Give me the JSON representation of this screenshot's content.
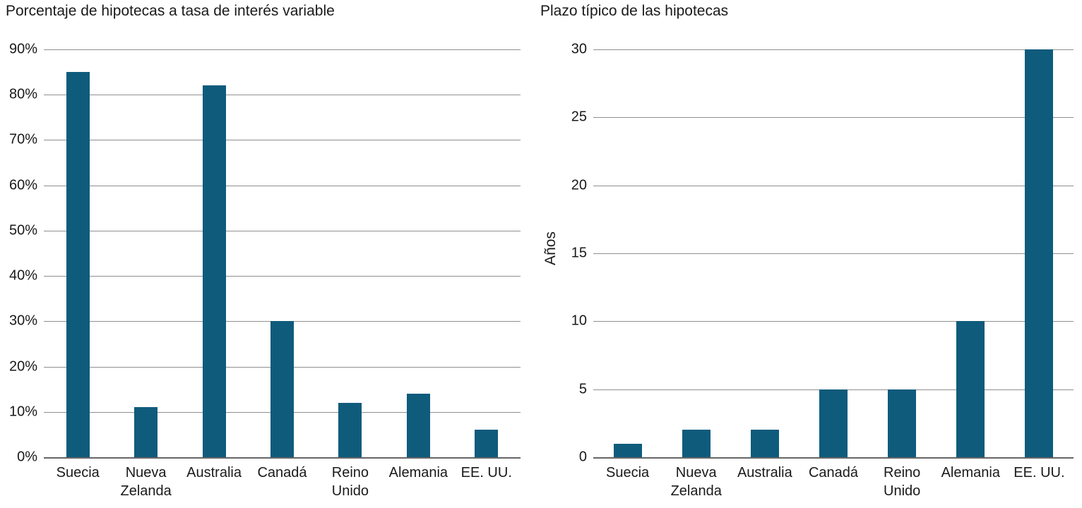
{
  "chart_data": [
    {
      "type": "bar",
      "title": "Porcentaje de hipotecas a tasa de interés variable",
      "categories": [
        "Suecia",
        "Nueva Zelanda",
        "Australia",
        "Canadá",
        "Reino Unido",
        "Alemania",
        "EE. UU."
      ],
      "values": [
        85,
        11,
        82,
        30,
        12,
        14,
        6
      ],
      "xlabel": "",
      "ylabel": "",
      "ylim": [
        0,
        90
      ],
      "ytick_step": 10,
      "ytick_suffix": "%",
      "bar_color": "#0f5b7c",
      "grid": true,
      "legend": "none"
    },
    {
      "type": "bar",
      "title": "Plazo típico de las hipotecas",
      "categories": [
        "Suecia",
        "Nueva Zelanda",
        "Australia",
        "Canadá",
        "Reino Unido",
        "Alemania",
        "EE. UU."
      ],
      "values": [
        1,
        2,
        2,
        5,
        5,
        10,
        30
      ],
      "xlabel": "",
      "ylabel": "Años",
      "ylim": [
        0,
        30
      ],
      "ytick_step": 5,
      "ytick_suffix": "",
      "bar_color": "#0f5b7c",
      "grid": true,
      "legend": "none"
    }
  ],
  "colors": {
    "bar": "#0f5b7c",
    "gridline": "#8f8f8f",
    "axis": "#666666",
    "text": "#1a1a1a",
    "background": "#ffffff"
  }
}
